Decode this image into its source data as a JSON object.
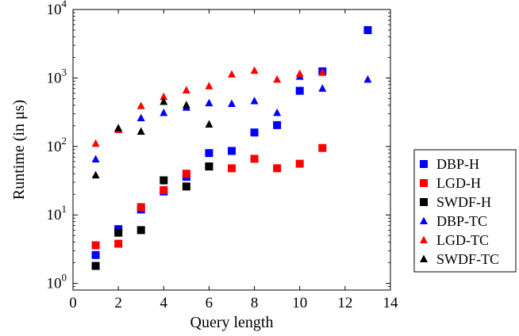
{
  "chart_data": {
    "type": "scatter",
    "xlabel": "Query length",
    "ylabel": "Runtime (in μs)",
    "yscale": "log",
    "xlim": [
      0,
      14
    ],
    "ylim": [
      0.8,
      10000
    ],
    "xticks": [
      0,
      2,
      4,
      6,
      8,
      10,
      12,
      14
    ],
    "yticks": [
      1,
      10,
      100,
      1000,
      10000
    ],
    "ytick_labels": [
      {
        "base": "10",
        "exp": "0"
      },
      {
        "base": "10",
        "exp": "1"
      },
      {
        "base": "10",
        "exp": "2"
      },
      {
        "base": "10",
        "exp": "3"
      },
      {
        "base": "10",
        "exp": "4"
      }
    ],
    "grid": false,
    "legend_position": "right",
    "series": [
      {
        "name": "DBP-H",
        "marker": "square",
        "color": "#0000ff",
        "x": [
          1,
          2,
          3,
          4,
          5,
          6,
          7,
          8,
          9,
          10,
          11,
          13
        ],
        "y": [
          2.6,
          6.2,
          12,
          22,
          36,
          80,
          86,
          160,
          205,
          650,
          1250,
          5000
        ]
      },
      {
        "name": "LGD-H",
        "marker": "square",
        "color": "#ff0000",
        "x": [
          1,
          2,
          3,
          4,
          5,
          6,
          7,
          8,
          9,
          10,
          11
        ],
        "y": [
          3.6,
          3.8,
          13,
          23,
          40,
          51,
          48,
          66,
          48,
          56,
          95
        ]
      },
      {
        "name": "SWDF-H",
        "marker": "square",
        "color": "#000000",
        "x": [
          1,
          2,
          3,
          4,
          5,
          6
        ],
        "y": [
          1.8,
          5.5,
          6,
          32,
          26,
          51
        ]
      },
      {
        "name": "DBP-TC",
        "marker": "triangle",
        "color": "#0000ff",
        "x": [
          1,
          2,
          3,
          4,
          5,
          6,
          7,
          8,
          9,
          10,
          11,
          13
        ],
        "y": [
          65,
          180,
          260,
          310,
          370,
          430,
          420,
          460,
          310,
          1050,
          700,
          950
        ]
      },
      {
        "name": "LGD-TC",
        "marker": "triangle",
        "color": "#ff0000",
        "x": [
          1,
          2,
          3,
          4,
          5,
          6,
          7,
          8,
          9,
          10,
          11
        ],
        "y": [
          110,
          175,
          390,
          530,
          660,
          760,
          1130,
          1280,
          950,
          1150,
          1200
        ]
      },
      {
        "name": "SWDF-TC",
        "marker": "triangle",
        "color": "#000000",
        "x": [
          1,
          2,
          3,
          4,
          5,
          6
        ],
        "y": [
          38,
          185,
          165,
          450,
          400,
          210
        ]
      }
    ]
  }
}
